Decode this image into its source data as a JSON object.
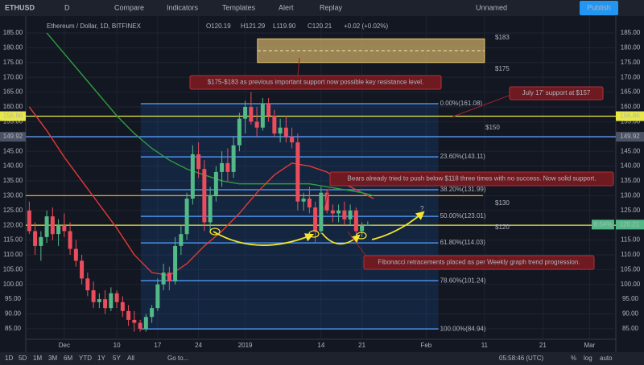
{
  "toolbar": {
    "symbol": "ETHUSD",
    "interval": "D",
    "items": [
      "Compare",
      "Indicators",
      "Templates",
      "Alert",
      "Replay"
    ],
    "layout_name": "Unnamed",
    "publish": "Publish"
  },
  "legend": {
    "title": "Ethereum / Dollar, 1D, BITFINEX",
    "open": "O120.19",
    "high": "H121.29",
    "low": "L119.90",
    "close": "C120.21",
    "change": "+0.02 (+0.02%)"
  },
  "chart_data": {
    "type": "candlestick",
    "up_color": "#53b987",
    "down_color": "#eb4d5c",
    "x": [
      -6,
      -5,
      -4,
      -3,
      -2,
      -1,
      0,
      1,
      2,
      3,
      4,
      5,
      6,
      7,
      8,
      9,
      10,
      11,
      12,
      13,
      14,
      15,
      16,
      17,
      18,
      19,
      20,
      21,
      22,
      23,
      24,
      25,
      26,
      27,
      28,
      29,
      30,
      31,
      32,
      33,
      34,
      35,
      36,
      37,
      38,
      39,
      40,
      41,
      42,
      43,
      44,
      45,
      46,
      47,
      48,
      49,
      50,
      51,
      52
    ],
    "open": [
      125,
      118,
      113,
      116,
      123,
      117,
      120,
      118,
      112,
      108,
      102,
      98,
      94,
      95,
      92,
      97,
      94,
      91,
      88,
      87,
      85,
      89,
      92,
      100,
      104,
      101,
      113,
      117,
      129,
      144,
      139,
      121,
      130,
      138,
      141,
      138,
      147,
      156,
      160,
      155,
      153,
      161,
      157,
      151,
      153,
      150,
      148,
      128,
      129,
      126,
      118,
      131,
      125,
      124,
      125,
      122,
      125,
      118,
      120.19
    ],
    "high": [
      128,
      121,
      118,
      125,
      126,
      122,
      124,
      121,
      115,
      110,
      104,
      101,
      97,
      98,
      99,
      98,
      96,
      93,
      91,
      88,
      90,
      93,
      102,
      107,
      106,
      116,
      120,
      131,
      147,
      148,
      142,
      133,
      140,
      145,
      146,
      150,
      158,
      162,
      165,
      160,
      163,
      163,
      159,
      156,
      157,
      153,
      151,
      131,
      133,
      128,
      133,
      132,
      127,
      127,
      128,
      127,
      126,
      121,
      121.29
    ],
    "low": [
      117,
      110,
      108,
      114,
      115,
      113,
      116,
      110,
      106,
      100,
      96,
      92,
      92,
      90,
      91,
      92,
      89,
      86,
      84,
      84,
      84,
      87,
      91,
      98,
      98,
      100,
      110,
      115,
      127,
      136,
      118,
      118,
      128,
      133,
      135,
      136,
      145,
      151,
      154,
      150,
      152,
      155,
      150,
      148,
      148,
      146,
      125,
      125,
      124,
      114,
      117,
      124,
      121,
      121,
      120,
      120,
      116,
      116,
      119.9
    ],
    "close": [
      118,
      113,
      116,
      123,
      117,
      120,
      118,
      112,
      108,
      102,
      98,
      94,
      95,
      92,
      97,
      94,
      91,
      88,
      87,
      85,
      89,
      92,
      100,
      104,
      101,
      113,
      117,
      129,
      144,
      139,
      121,
      130,
      138,
      141,
      138,
      147,
      156,
      160,
      155,
      153,
      161,
      157,
      151,
      153,
      150,
      148,
      128,
      129,
      126,
      118,
      131,
      125,
      124,
      125,
      122,
      125,
      118,
      120,
      120.21
    ],
    "xlim": [
      -6.6,
      94.5
    ],
    "xticks": [
      {
        "value": 0,
        "label": "Dec"
      },
      {
        "value": 9,
        "label": "10"
      },
      {
        "value": 16,
        "label": "17"
      },
      {
        "value": 23,
        "label": "24"
      },
      {
        "value": 31,
        "label": "2019"
      },
      {
        "value": 44,
        "label": "14"
      },
      {
        "value": 51,
        "label": "21"
      },
      {
        "value": 62,
        "label": "Feb"
      },
      {
        "value": 72,
        "label": "11"
      },
      {
        "value": 82,
        "label": "21"
      },
      {
        "value": 90,
        "label": "Mar"
      }
    ],
    "ylim": [
      77.1,
      190.7
    ],
    "yticks": [
      {
        "value": 85,
        "label": "85.00"
      },
      {
        "value": 90,
        "label": "90.00"
      },
      {
        "value": 95,
        "label": "95.00"
      },
      {
        "value": 100,
        "label": "100.00"
      },
      {
        "value": 105,
        "label": "105.00"
      },
      {
        "value": 110,
        "label": "110.00"
      },
      {
        "value": 115,
        "label": "115.00"
      },
      {
        "value": 120,
        "label": "120.00"
      },
      {
        "value": 125,
        "label": "125.00"
      },
      {
        "value": 130,
        "label": "130.00"
      },
      {
        "value": 135,
        "label": "135.00"
      },
      {
        "value": 140,
        "label": "140.00"
      },
      {
        "value": 145,
        "label": "145.00"
      },
      {
        "value": 150,
        "label": "150.00"
      },
      {
        "value": 155,
        "label": "155.00"
      },
      {
        "value": 160,
        "label": "160.00"
      },
      {
        "value": 165,
        "label": "165.00"
      },
      {
        "value": 170,
        "label": "170.00"
      },
      {
        "value": 175,
        "label": "175.00"
      },
      {
        "value": 180,
        "label": "180.00"
      },
      {
        "value": 185,
        "label": "185.00"
      }
    ],
    "grid": true,
    "ma_lines": [
      {
        "color": "#e53935",
        "x": [
          -6,
          -3,
          0,
          3,
          6,
          9,
          12,
          15,
          18,
          21,
          24,
          27,
          30,
          33,
          36,
          39,
          42,
          45,
          48,
          51,
          53
        ],
        "values": [
          160,
          152,
          143,
          135,
          127,
          119,
          110,
          104,
          103,
          107,
          113,
          118,
          124,
          131,
          137,
          141,
          140,
          138,
          134,
          131,
          129
        ]
      },
      {
        "color": "#2e9e3e",
        "x": [
          -3,
          0,
          3,
          6,
          9,
          12,
          15,
          18,
          21,
          24,
          27,
          30,
          33,
          36,
          39,
          42,
          45,
          48,
          51,
          53
        ],
        "values": [
          185,
          178,
          171,
          164,
          157,
          151,
          146,
          142,
          139,
          137,
          135,
          134,
          134,
          134,
          134,
          134,
          133,
          132,
          131,
          130
        ]
      }
    ],
    "levels": [
      {
        "value": 156.86,
        "color": "#e8e84a"
      },
      {
        "value": 149.92,
        "color": "#5b9cf6"
      },
      {
        "value": 130,
        "color": "#f5a623"
      },
      {
        "value": 120,
        "color": "#e8e84a"
      }
    ],
    "fib": {
      "color": "#4a8fe7",
      "levels": [
        {
          "value": 161.08,
          "label": "0.00%(161.08)"
        },
        {
          "value": 143.11,
          "label": "23.60%(143.11)"
        },
        {
          "value": 131.99,
          "label": "38.20%(131.99)"
        },
        {
          "value": 123.01,
          "label": "50.00%(123.01)"
        },
        {
          "value": 114.03,
          "label": "61.80%(114.03)"
        },
        {
          "value": 101.24,
          "label": "78.60%(101.24)"
        },
        {
          "value": 84.94,
          "label": "100.00%(84.94)"
        }
      ]
    },
    "zone": {
      "low": 175,
      "high": 183
    },
    "price_notes": [
      {
        "label": "$183",
        "color": "#2ecc40"
      },
      {
        "label": "$175",
        "color": "#2ecc40"
      },
      {
        "label": "$150",
        "color": "#b7cdf0"
      },
      {
        "label": "$130",
        "color": "#f0e040"
      },
      {
        "label": "$120",
        "color": "#f0e040"
      }
    ],
    "annotations": [
      {
        "text": "$175-$183 as previous important support now possible key resistance level."
      },
      {
        "text": "July 17' support at $157"
      },
      {
        "text": "Bears already tried to push below $118 three times with no success. Now solid support."
      },
      {
        "text": "Fibonacci retracements placed as per Weekly graph trend progression."
      },
      {
        "text": "?"
      }
    ],
    "last_price": {
      "value": 120.21,
      "badge": "8.54%"
    }
  },
  "bottom_bar": {
    "ranges": [
      "1D",
      "5D",
      "1M",
      "3M",
      "6M",
      "YTD",
      "1Y",
      "5Y",
      "All"
    ],
    "goto": "Go to...",
    "time": "05:58:46 (UTC)",
    "options": [
      "%",
      "log",
      "auto"
    ]
  }
}
